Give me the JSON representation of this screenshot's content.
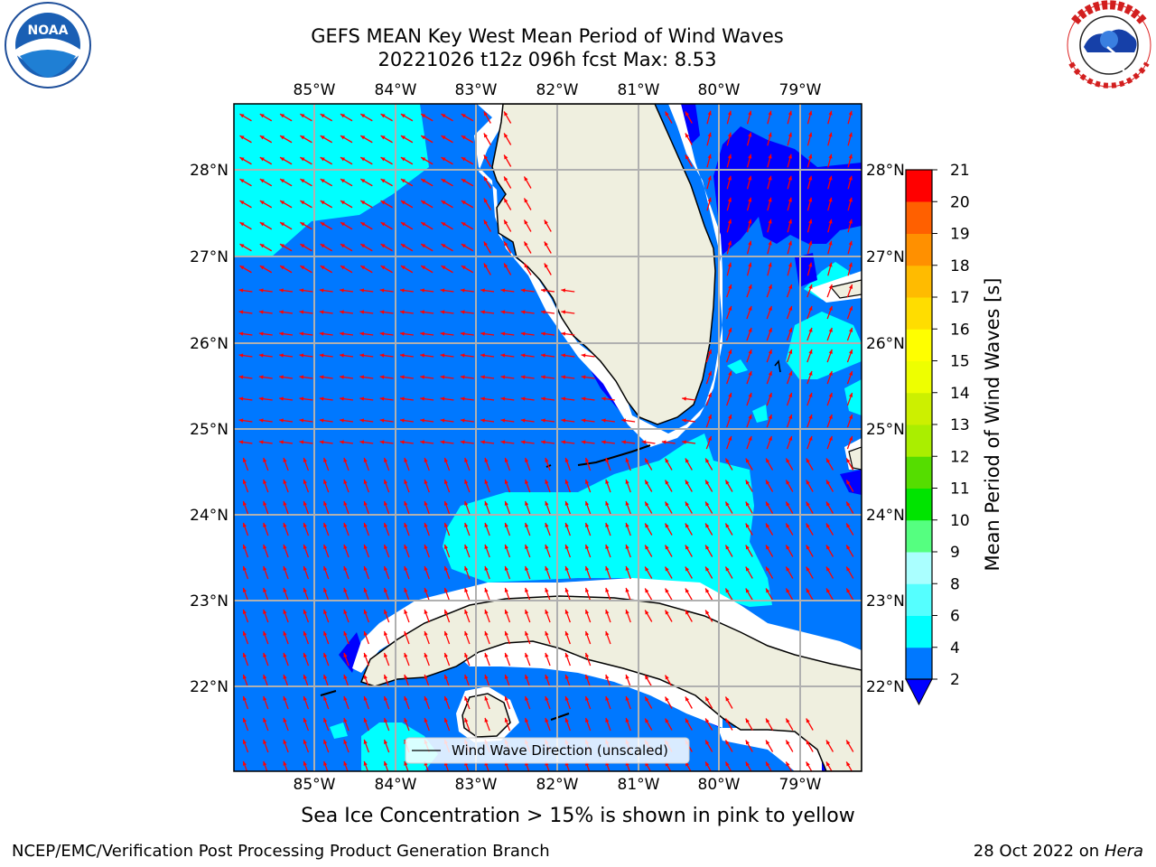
{
  "header": {
    "title_line1": "GEFS MEAN Key West Mean Period of Wind Waves",
    "title_line2": "20221026 t12z 096h fcst   Max: 8.53"
  },
  "logos": {
    "noara": {
      "text": "NOAA",
      "ring_text": "NATIONAL OCEANIC AND ATMOSPHERIC ADMINISTRATION · U.S. DEPARTMENT OF COMMERCE"
    },
    "nws": {
      "ring_text": "NATIONAL WEATHER SERVICE"
    }
  },
  "map": {
    "lon_ticks": [
      "85°W",
      "84°W",
      "83°W",
      "82°W",
      "81°W",
      "80°W",
      "79°W"
    ],
    "lat_ticks": [
      "22°N",
      "23°N",
      "24°N",
      "25°N",
      "26°N",
      "27°N",
      "28°N"
    ],
    "legend_label": "Wind Wave Direction (unscaled)",
    "arrow_color": "#ff0000"
  },
  "colorbar": {
    "label": "Mean Period of Wind Waves [s]",
    "ticks": [
      "2",
      "4",
      "6",
      "8",
      "9",
      "10",
      "11",
      "12",
      "13",
      "14",
      "15",
      "16",
      "17",
      "18",
      "19",
      "20",
      "21"
    ],
    "colors": [
      "#0078ff",
      "#00ffff",
      "#55ffff",
      "#aaffff",
      "#55ff80",
      "#00e400",
      "#55dd00",
      "#aaee00",
      "#ccf000",
      "#eeff00",
      "#ffff00",
      "#ffdd00",
      "#ffbb00",
      "#ff9000",
      "#ff6000",
      "#ff3000",
      "#ff0000"
    ],
    "under_color": "#0000ff"
  },
  "footer": {
    "note": "Sea Ice Concentration > 15% is shown in pink to yellow",
    "left": "NCEP/EMC/Verification Post Processing Product Generation Branch",
    "date": "28 Oct 2022 on",
    "host": "Hera"
  }
}
